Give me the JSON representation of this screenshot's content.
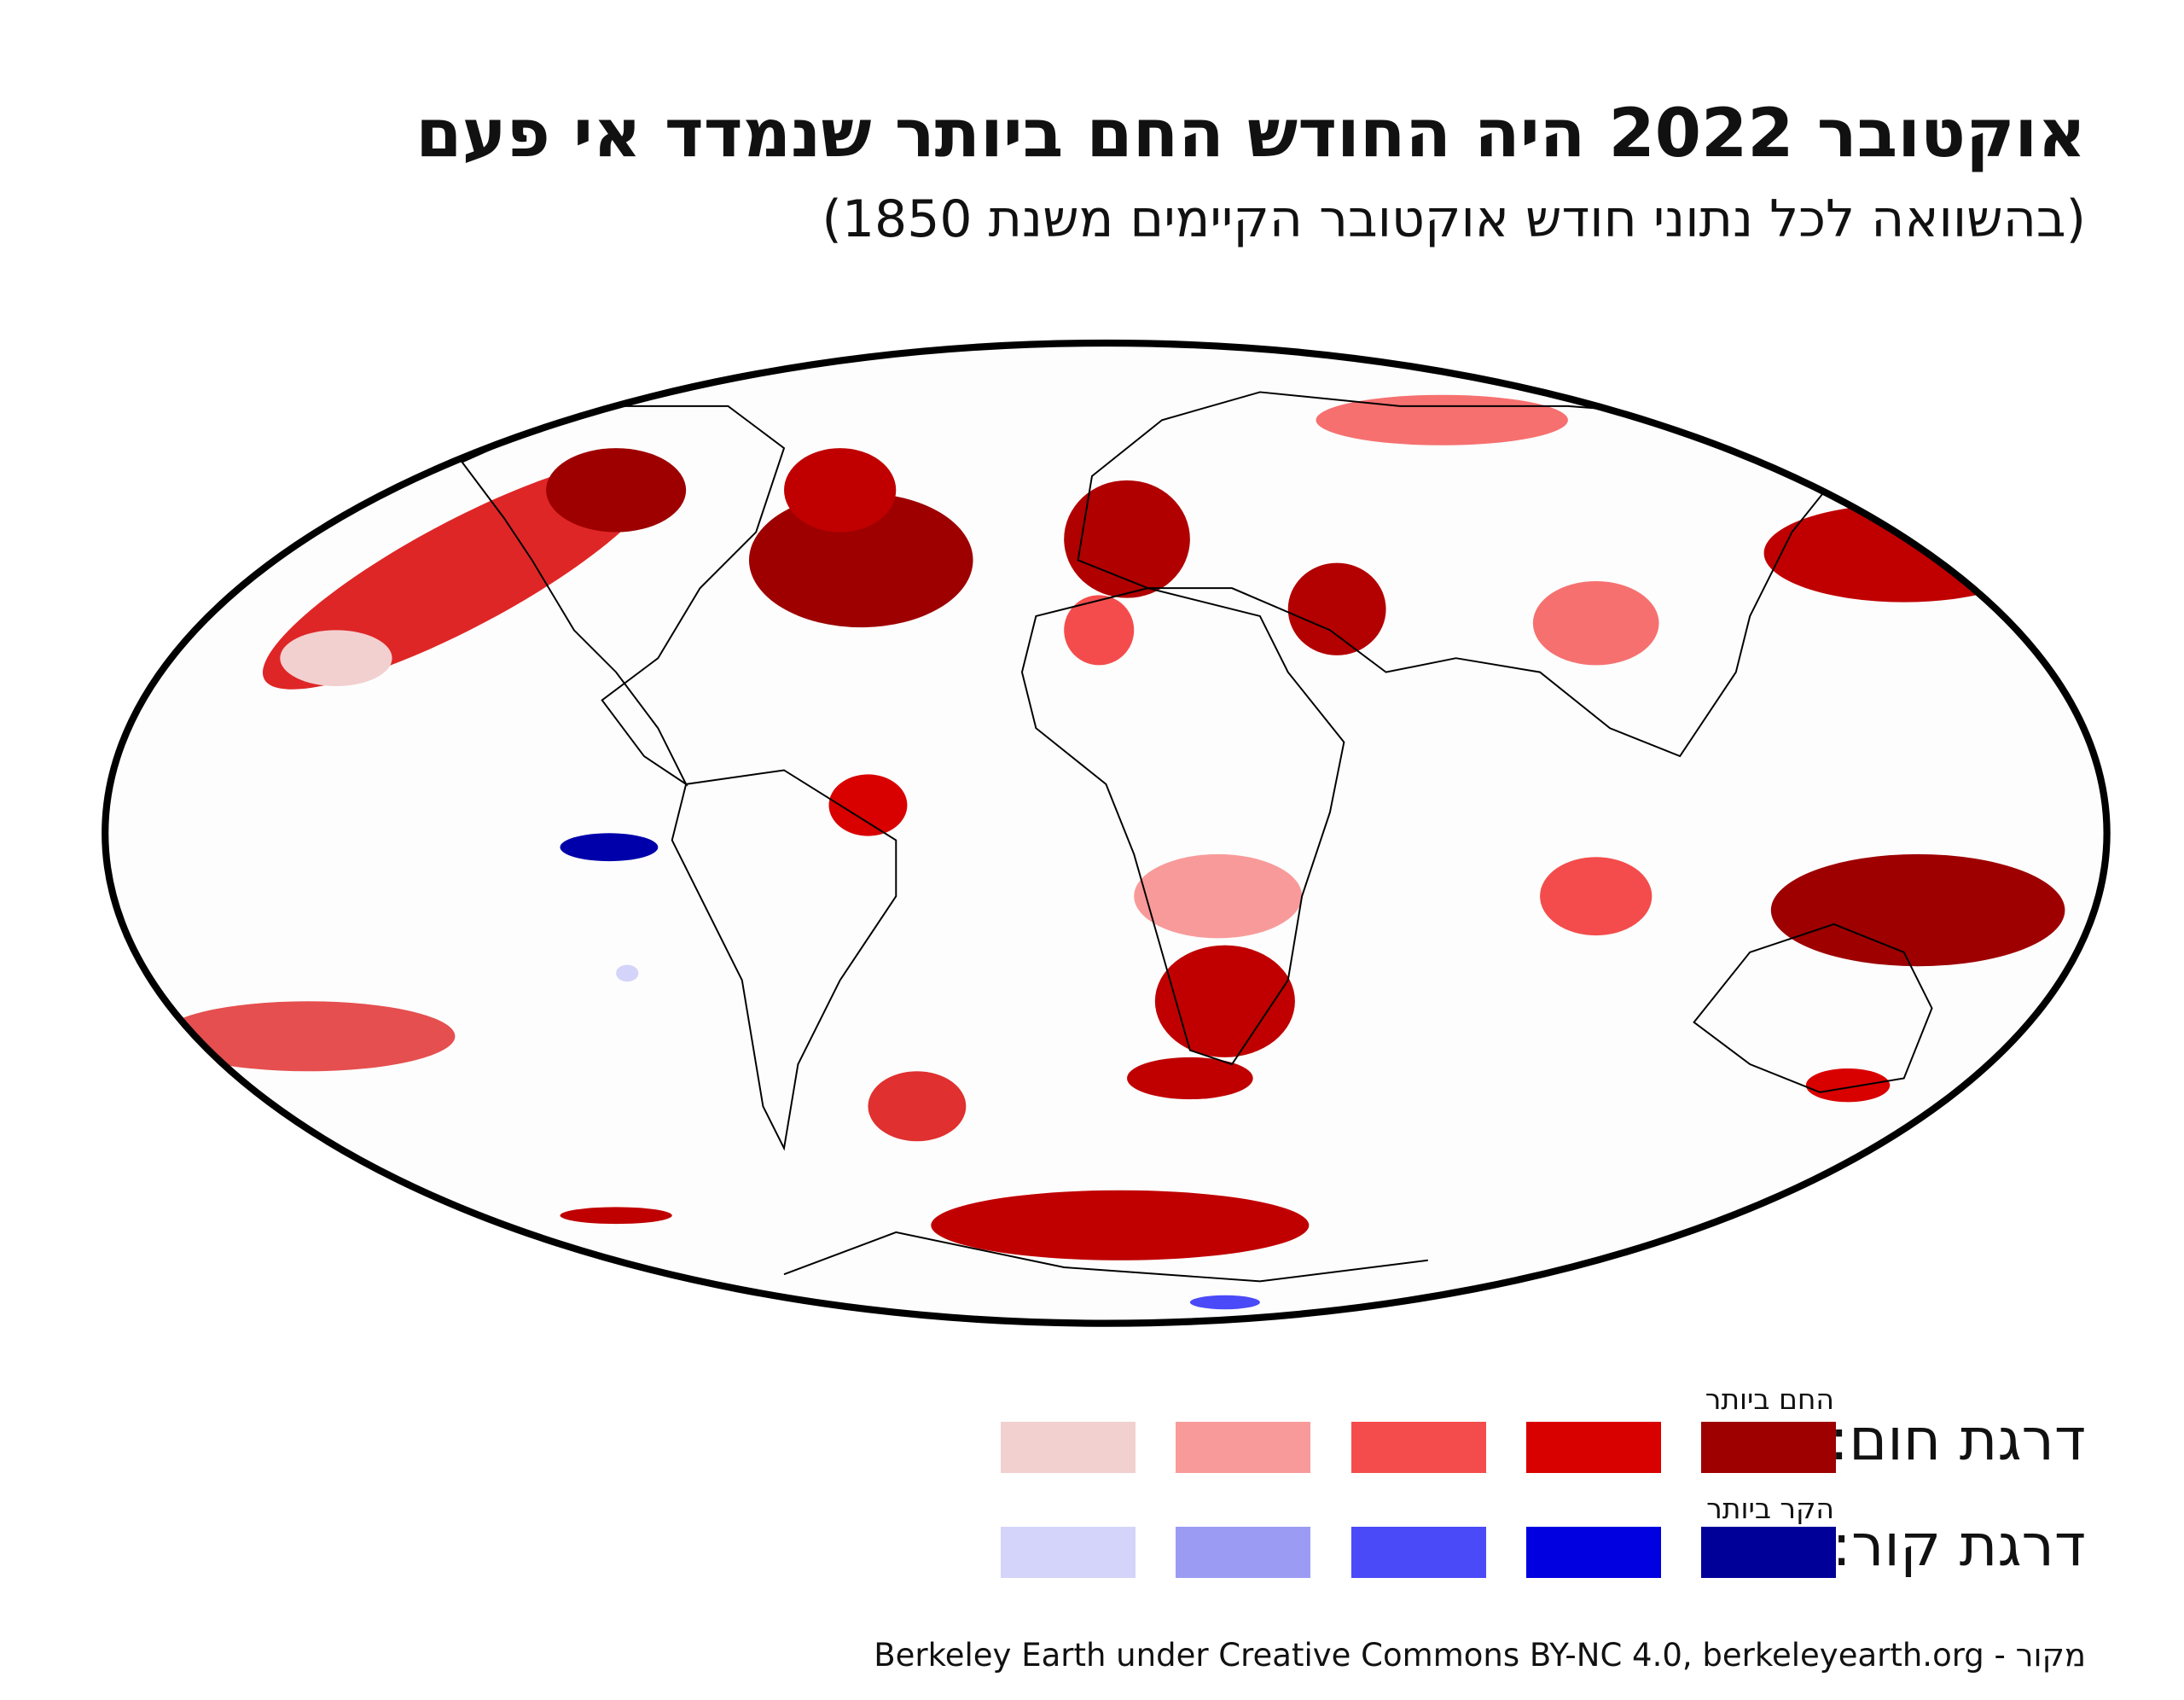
{
  "header": {
    "title": "אוקטובר 2022 היה החודש החם ביותר שנמדד אי פעם",
    "subtitle": "(בהשוואה לכל נתוני חודש אוקטובר הקיימים משנת 1850)"
  },
  "legend": {
    "warm": {
      "label": "דרגת חום:",
      "extreme_label": "החם ביותר",
      "colors": [
        "#f2d0d0",
        "#f99a9a",
        "#f44c4c",
        "#d90000",
        "#9e0000"
      ]
    },
    "cold": {
      "label": "דרגת קור:",
      "extreme_label": "הקר ביותר",
      "colors": [
        "#d4d4fa",
        "#9b9bf4",
        "#4a4af8",
        "#0000e0",
        "#000099"
      ]
    }
  },
  "source": "מקור - Berkeley Earth under Creative Commons BY-NC 4.0, berkeleyearth.org"
}
